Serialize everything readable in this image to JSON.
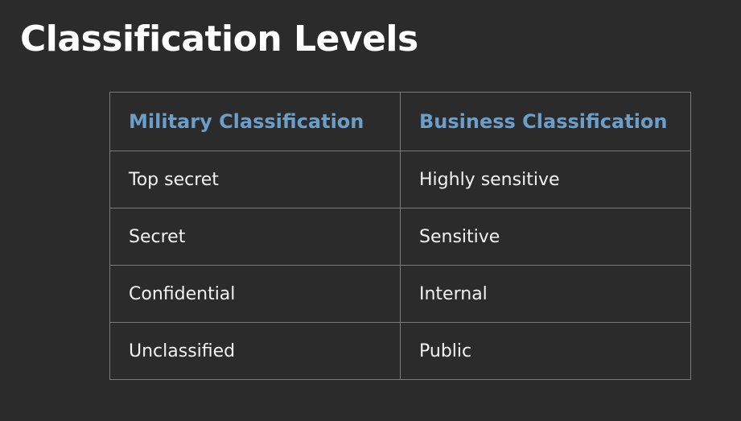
{
  "slide": {
    "title": "Classification Levels",
    "colors": {
      "background": "#2b2b2b",
      "title": "#ffffff",
      "header_text": "#6b9fc9",
      "cell_text": "#f2f2f2",
      "grid": "#7a7a7a"
    }
  },
  "table": {
    "headers": [
      "Military Classification",
      "Business Classification"
    ],
    "rows": [
      [
        "Top secret",
        "Highly sensitive"
      ],
      [
        "Secret",
        "Sensitive"
      ],
      [
        "Confidential",
        "Internal"
      ],
      [
        "Unclassified",
        "Public"
      ]
    ]
  }
}
